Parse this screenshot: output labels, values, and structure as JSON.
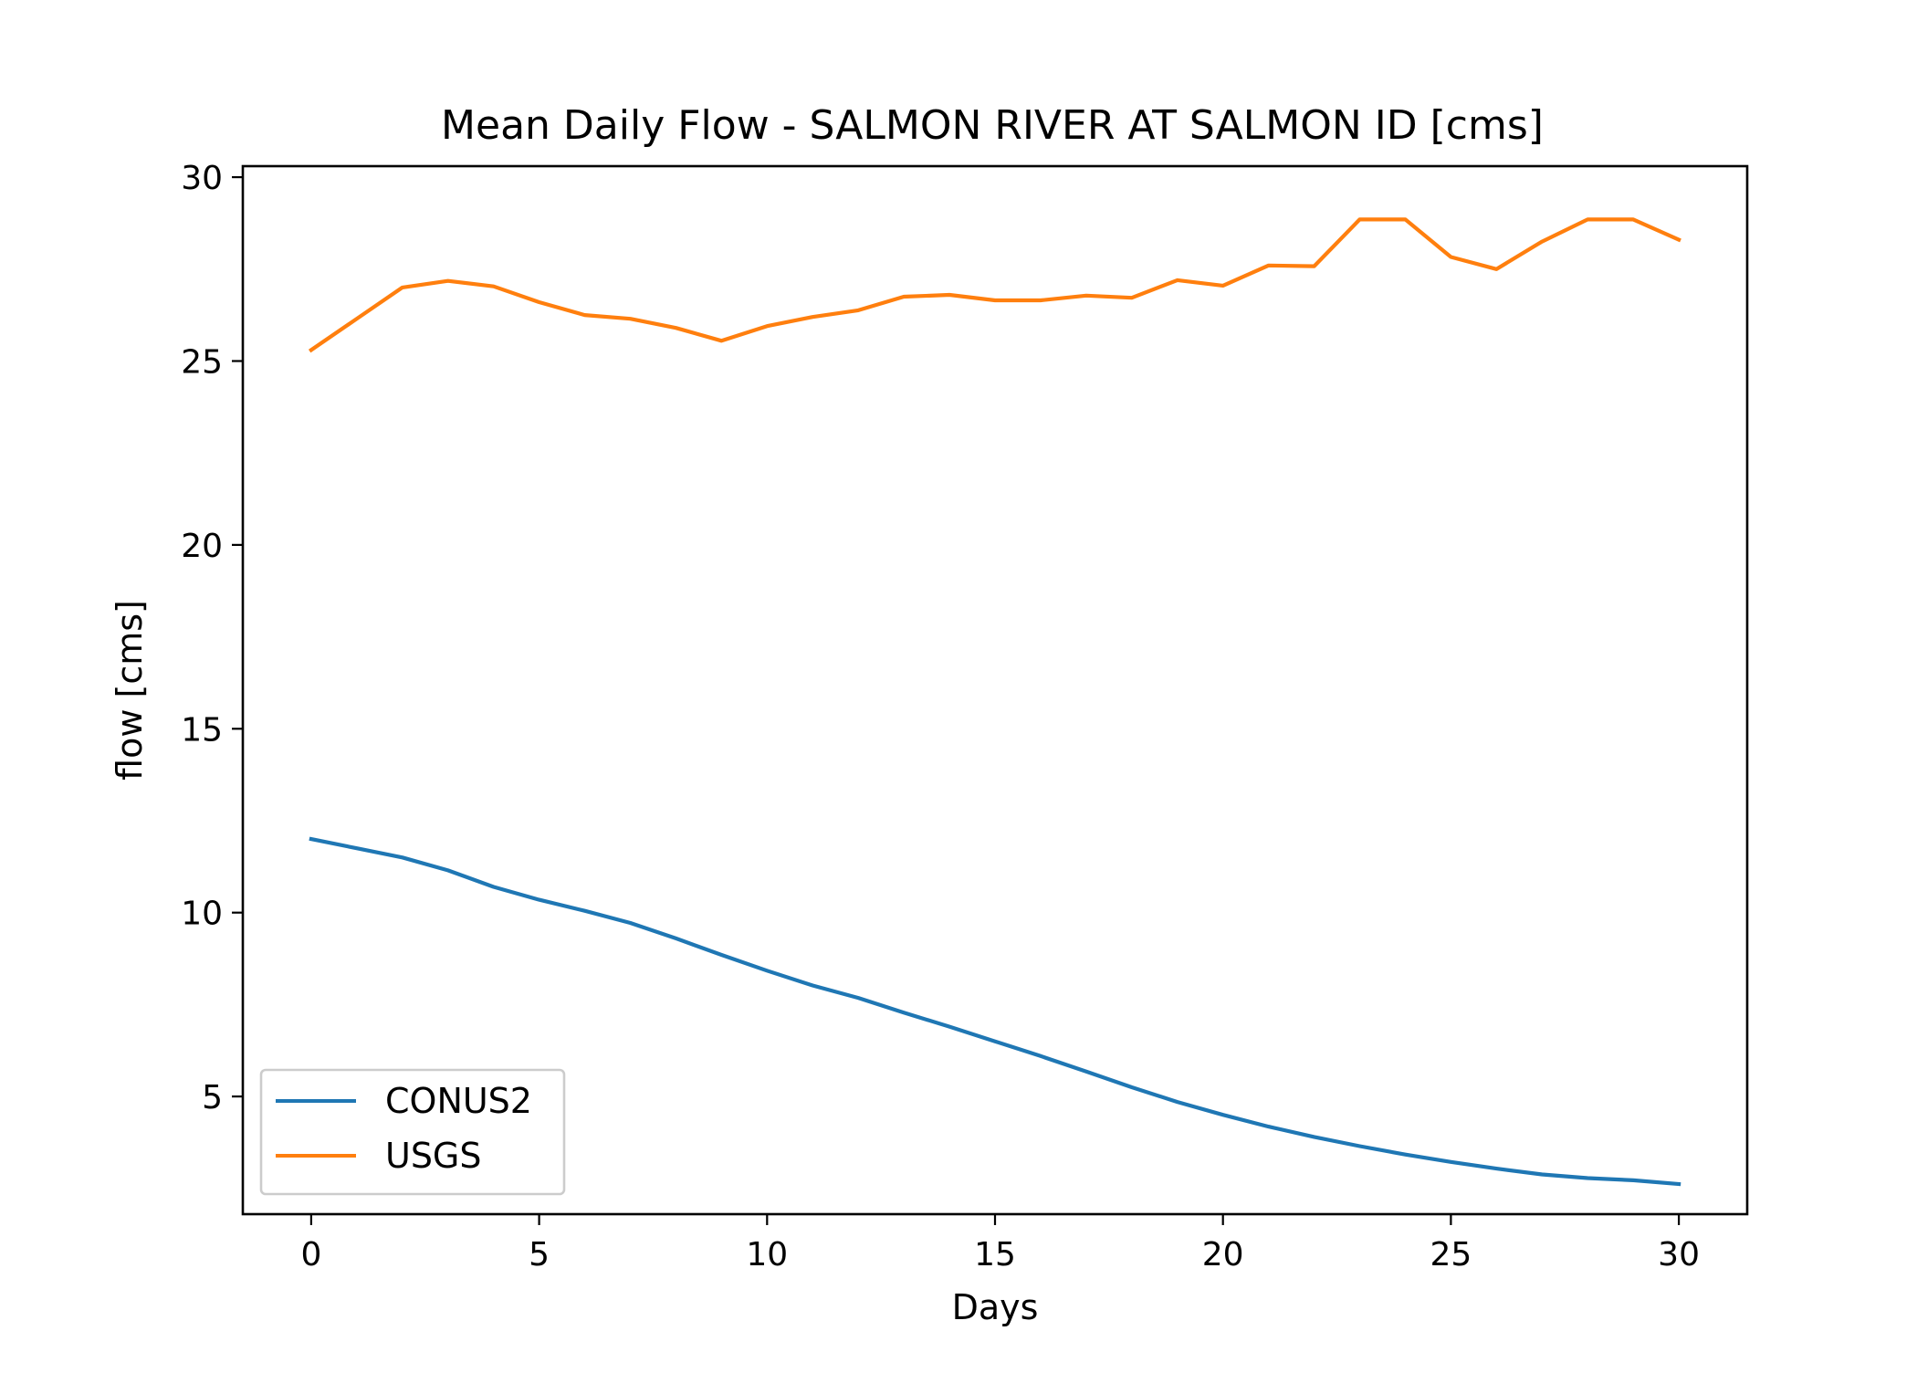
{
  "chart_data": {
    "type": "line",
    "title": "Mean Daily Flow - SALMON RIVER AT SALMON ID [cms]",
    "xlabel": "Days",
    "ylabel": "flow [cms]",
    "xlim": [
      -1.5,
      31.5
    ],
    "ylim": [
      1.8,
      30.3
    ],
    "xticks": [
      0,
      5,
      10,
      15,
      20,
      25,
      30
    ],
    "yticks": [
      5,
      10,
      15,
      20,
      25,
      30
    ],
    "grid": false,
    "legend": "lower-left",
    "x": [
      0,
      1,
      2,
      3,
      4,
      5,
      6,
      7,
      8,
      9,
      10,
      11,
      12,
      13,
      14,
      15,
      16,
      17,
      18,
      19,
      20,
      21,
      22,
      23,
      24,
      25,
      26,
      27,
      28,
      29,
      30
    ],
    "series": [
      {
        "name": "CONUS2",
        "color": "#1f77b4",
        "values": [
          12.0,
          11.75,
          11.5,
          11.15,
          10.7,
          10.35,
          10.05,
          9.72,
          9.3,
          8.85,
          8.42,
          8.02,
          7.68,
          7.28,
          6.9,
          6.5,
          6.1,
          5.68,
          5.25,
          4.85,
          4.5,
          4.18,
          3.9,
          3.65,
          3.42,
          3.22,
          3.04,
          2.88,
          2.78,
          2.72,
          2.62
        ]
      },
      {
        "name": "USGS",
        "color": "#ff7f0e",
        "values": [
          25.3,
          26.15,
          27.0,
          27.18,
          27.03,
          26.6,
          26.25,
          26.15,
          25.9,
          25.55,
          25.95,
          26.2,
          26.38,
          26.75,
          26.8,
          26.65,
          26.65,
          26.78,
          26.72,
          27.2,
          27.05,
          27.6,
          27.58,
          28.85,
          28.85,
          27.83,
          27.5,
          28.25,
          28.85,
          28.85,
          28.3
        ]
      }
    ]
  }
}
